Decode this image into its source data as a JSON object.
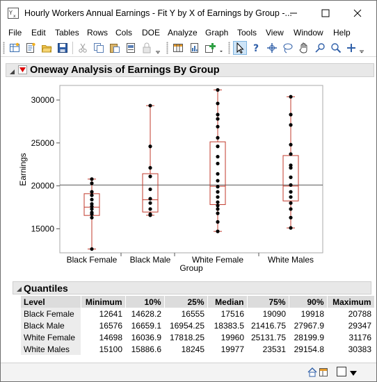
{
  "window": {
    "title": "Hourly Workers Annual Earnings - Fit Y by X of Earnings by Group -...",
    "icon": "fit-y-by-x-icon",
    "controls": [
      "minimize-icon",
      "maximize-icon",
      "close-icon"
    ]
  },
  "menu": [
    "File",
    "Edit",
    "Tables",
    "Rows",
    "Cols",
    "DOE",
    "Analyze",
    "Graph",
    "Tools",
    "View",
    "Window",
    "Help"
  ],
  "toolbar": {
    "icons": [
      "new-data-table-icon",
      "new-script-icon",
      "open-icon",
      "save-icon",
      "cut-icon",
      "copy-icon",
      "paste-icon",
      "journal-icon",
      "lock-icon",
      "data-table-icon",
      "report-icon",
      "add-icon",
      "arrow-select-icon",
      "help-question-icon",
      "crosshair-icon",
      "lasso-icon",
      "hand-grabber-icon",
      "brush-icon",
      "magnifier-icon",
      "annotate-plus-icon"
    ]
  },
  "report": {
    "oneway_title": "Oneway Analysis of Earnings By Group",
    "quantiles_title": "Quantiles"
  },
  "chart_data": {
    "type": "box",
    "xlabel": "Group",
    "ylabel": "Earnings",
    "categories": [
      "Black Female",
      "Black Male",
      "White Female",
      "White Males"
    ],
    "y_ticks": [
      15000,
      20000,
      25000,
      30000
    ],
    "ylim": [
      12200,
      31700
    ],
    "reference_line": 20100,
    "grid": false,
    "colors": {
      "box": "#c0392b",
      "point": "#000000",
      "reference": "#555555"
    },
    "boxes": [
      {
        "name": "Black Female",
        "min": 12641,
        "q1": 16555,
        "median": 17516,
        "q3": 19090,
        "max": 20788
      },
      {
        "name": "Black Male",
        "min": 16576,
        "q1": 16954.25,
        "median": 18383.5,
        "q3": 21416.75,
        "max": 29347
      },
      {
        "name": "White Female",
        "min": 14698,
        "q1": 17818.25,
        "median": 19960,
        "q3": 25131.75,
        "max": 31176
      },
      {
        "name": "White Males",
        "min": 15100,
        "q1": 18245,
        "median": 19977,
        "q3": 23531,
        "max": 30383
      }
    ],
    "points": [
      [
        12641,
        16300,
        16700,
        16900,
        17300,
        17600,
        17900,
        18400,
        18900,
        19300,
        20300,
        20788
      ],
      [
        16576,
        16700,
        17300,
        18000,
        18500,
        19600,
        21100,
        22100,
        24600,
        29347
      ],
      [
        14698,
        15800,
        16800,
        17300,
        17700,
        18100,
        18700,
        19300,
        19900,
        20600,
        21400,
        22600,
        23400,
        24600,
        25600,
        26900,
        27800,
        28300,
        29600,
        31176
      ],
      [
        15100,
        16300,
        17300,
        18000,
        18700,
        19300,
        20100,
        21000,
        22100,
        22400,
        23700,
        24800,
        27100,
        28300,
        30383
      ]
    ]
  },
  "quantiles": {
    "headers": [
      "Level",
      "Minimum",
      "10%",
      "25%",
      "Median",
      "75%",
      "90%",
      "Maximum"
    ],
    "rows": [
      [
        "Black Female",
        "12641",
        "14628.2",
        "16555",
        "17516",
        "19090",
        "19918",
        "20788"
      ],
      [
        "Black Male",
        "16576",
        "16659.1",
        "16954.25",
        "18383.5",
        "21416.75",
        "27967.9",
        "29347"
      ],
      [
        "White Female",
        "14698",
        "16036.9",
        "17818.25",
        "19960",
        "25131.75",
        "28199.9",
        "31176"
      ],
      [
        "White Males",
        "15100",
        "15886.6",
        "18245",
        "19977",
        "23531",
        "29154.8",
        "30383"
      ]
    ]
  },
  "statusbar": {
    "icons": [
      "home-icon",
      "table-window-icon",
      "checkbox-icon",
      "dropdown-arrow-icon"
    ]
  }
}
